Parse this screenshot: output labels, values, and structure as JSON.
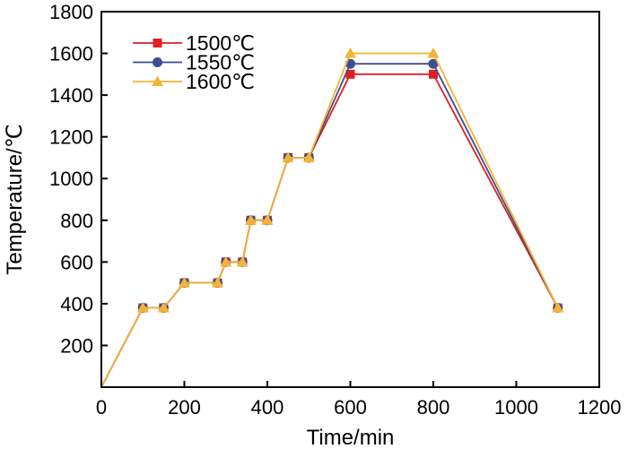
{
  "chart_data": {
    "type": "line",
    "title": "",
    "xlabel": "Time/min",
    "ylabel": "Temperature/℃",
    "xlim": [
      0,
      1200
    ],
    "ylim": [
      0,
      1800
    ],
    "xticks": [
      0,
      200,
      400,
      600,
      800,
      1000,
      1200
    ],
    "yticks": [
      200,
      400,
      600,
      800,
      1000,
      1200,
      1400,
      1600,
      1800
    ],
    "xtick_labels": [
      "0",
      "200",
      "400",
      "600",
      "800",
      "1000",
      "1200"
    ],
    "ytick_labels": [
      "200",
      "400",
      "600",
      "800",
      "1000",
      "1200",
      "1400",
      "1600",
      "1800"
    ],
    "grid": false,
    "legend_position": "top-left",
    "series": [
      {
        "name": "1500℃",
        "color": "#e02020",
        "marker": "square",
        "x": [
          0,
          100,
          150,
          200,
          280,
          300,
          340,
          360,
          400,
          450,
          500,
          600,
          800,
          1100
        ],
        "y": [
          0,
          380,
          380,
          500,
          500,
          600,
          600,
          800,
          800,
          1100,
          1100,
          1500,
          1500,
          380
        ]
      },
      {
        "name": "1550℃",
        "color": "#3a4f8f",
        "marker": "circle",
        "x": [
          0,
          100,
          150,
          200,
          280,
          300,
          340,
          360,
          400,
          450,
          500,
          600,
          800,
          1100
        ],
        "y": [
          0,
          380,
          380,
          500,
          500,
          600,
          600,
          800,
          800,
          1100,
          1100,
          1550,
          1550,
          380
        ]
      },
      {
        "name": "1600℃",
        "color": "#f5b335",
        "marker": "triangle",
        "x": [
          0,
          100,
          150,
          200,
          280,
          300,
          340,
          360,
          400,
          450,
          500,
          600,
          800,
          1100
        ],
        "y": [
          0,
          380,
          380,
          500,
          500,
          600,
          600,
          800,
          800,
          1100,
          1100,
          1600,
          1600,
          380
        ]
      }
    ]
  }
}
